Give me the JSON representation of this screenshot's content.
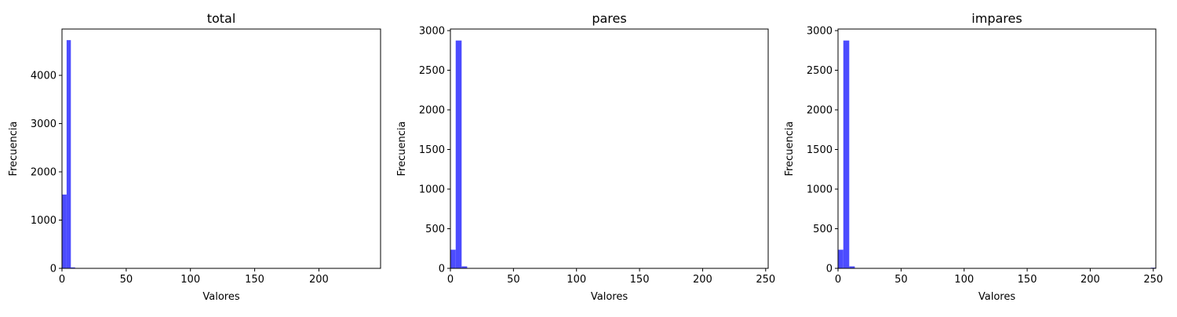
{
  "colors": {
    "bar": "#4c4cff",
    "axis": "#000000",
    "background": "#ffffff"
  },
  "chart_data": [
    {
      "type": "bar",
      "title": "total",
      "xlabel": "Valores",
      "ylabel": "Frecuencia",
      "xlim": [
        0,
        248
      ],
      "ylim": [
        0,
        4960
      ],
      "xticks": [
        0,
        50,
        100,
        150,
        200
      ],
      "yticks": [
        0,
        1000,
        2000,
        3000,
        4000
      ],
      "bin_edges": [
        0,
        3.6,
        6.9,
        10.2
      ],
      "values": [
        1530,
        4730,
        20
      ]
    },
    {
      "type": "bar",
      "title": "pares",
      "xlabel": "Valores",
      "ylabel": "Frecuencia",
      "xlim": [
        0,
        252
      ],
      "ylim": [
        0,
        3020
      ],
      "xticks": [
        0,
        50,
        100,
        150,
        200,
        250
      ],
      "yticks": [
        0,
        500,
        1000,
        1500,
        2000,
        2500,
        3000
      ],
      "bin_edges": [
        0,
        4.2,
        8.9,
        13.3
      ],
      "values": [
        235,
        2875,
        25
      ]
    },
    {
      "type": "bar",
      "title": "impares",
      "xlabel": "Valores",
      "ylabel": "Frecuencia",
      "xlim": [
        0,
        252
      ],
      "ylim": [
        0,
        3020
      ],
      "xticks": [
        0,
        50,
        100,
        150,
        200,
        250
      ],
      "yticks": [
        0,
        500,
        1000,
        1500,
        2000,
        2500,
        3000
      ],
      "bin_edges": [
        0,
        4.2,
        8.9,
        13.3,
        248,
        252
      ],
      "values": [
        235,
        2875,
        25,
        0,
        8
      ]
    }
  ]
}
